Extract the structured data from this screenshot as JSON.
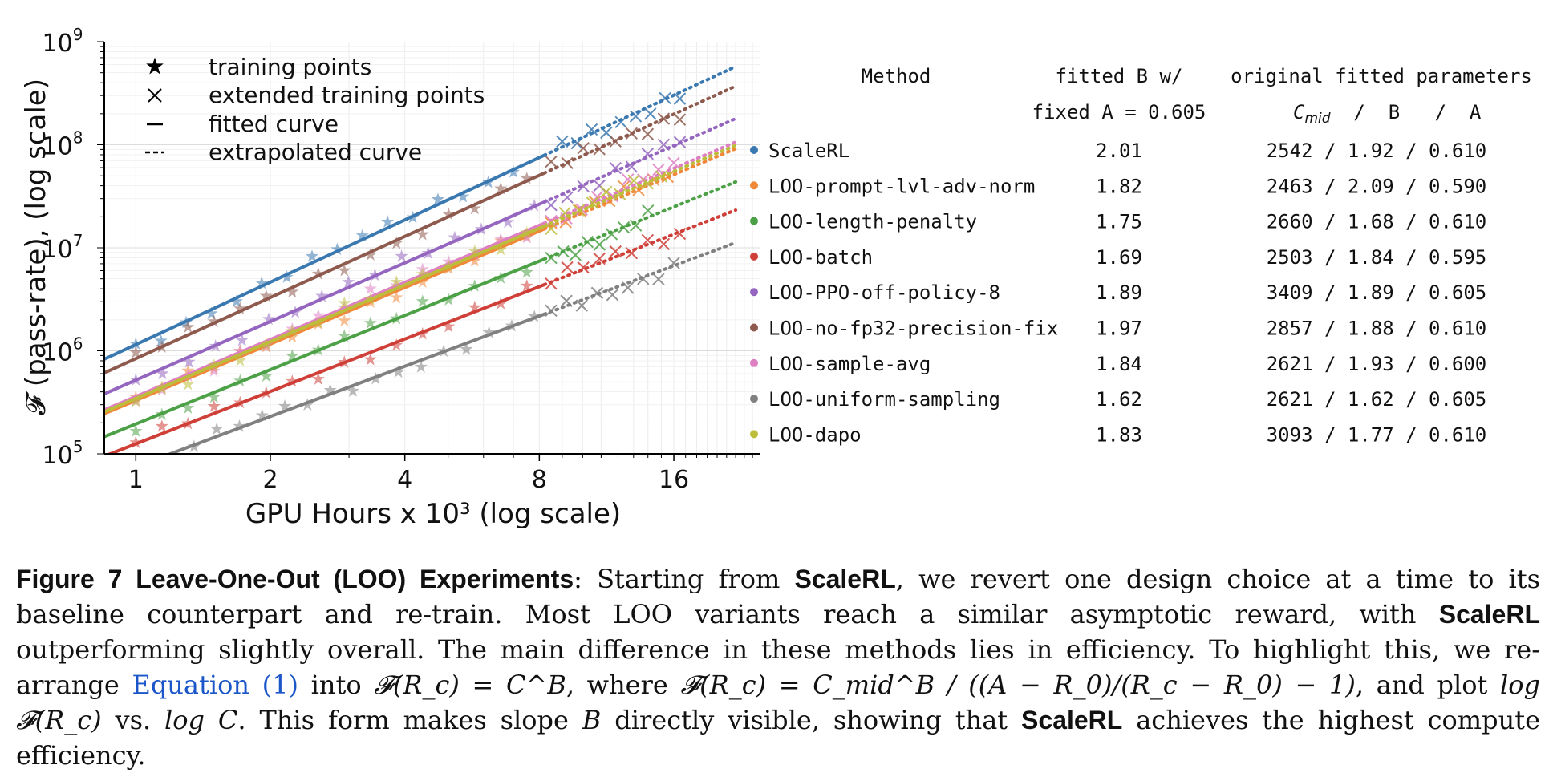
{
  "chart_data": {
    "type": "scatter",
    "ylabel": "𝓕 (pass-rate), (log scale)",
    "xlabel": "GPU Hours x 10³ (log scale)",
    "xscale": "log",
    "yscale": "log",
    "xlim": [
      0.85,
      25
    ],
    "ylim": [
      100000,
      1000000000
    ],
    "x_ticks": [
      1,
      2,
      4,
      8,
      16
    ],
    "x_tick_labels": [
      "1",
      "2",
      "4",
      "8",
      "16"
    ],
    "y_tick_labels": [
      {
        "base": "10",
        "exp": "5"
      },
      {
        "base": "10",
        "exp": "6"
      },
      {
        "base": "10",
        "exp": "7"
      },
      {
        "base": "10",
        "exp": "8"
      },
      {
        "base": "10",
        "exp": "9"
      }
    ],
    "grid": true,
    "legend_position": "top-left",
    "legend": [
      {
        "marker": "★",
        "label": "training points"
      },
      {
        "marker": "×",
        "label": "extended training points"
      },
      {
        "marker": "—",
        "label": "fitted curve"
      },
      {
        "marker": "--",
        "label": "extrapolated curve"
      }
    ],
    "fit_end_x": 8.2,
    "extrap_end_x": 22,
    "series": [
      {
        "name": "ScaleRL",
        "color": "#3a78b0",
        "B": 2.01,
        "y_at_x1": 1150000,
        "train_start": 1.0,
        "train_end": 7.0,
        "ext_start": 9.0,
        "ext_end": 16.5
      },
      {
        "name": "LOO-prompt-lvl-adv-norm",
        "color": "#f0883a",
        "B": 1.82,
        "y_at_x1": 330000,
        "train_start": 1.0,
        "train_end": 7.5,
        "ext_start": 8.5,
        "ext_end": 15.5
      },
      {
        "name": "LOO-length-penalty",
        "color": "#4ca146",
        "B": 1.75,
        "y_at_x1": 195000,
        "train_start": 1.0,
        "train_end": 7.5,
        "ext_start": 8.5,
        "ext_end": 14.0
      },
      {
        "name": "LOO-batch",
        "color": "#cf3e37",
        "B": 1.69,
        "y_at_x1": 125000,
        "train_start": 1.0,
        "train_end": 7.5,
        "ext_start": 8.5,
        "ext_end": 16.5
      },
      {
        "name": "LOO-PPO-off-policy-8",
        "color": "#9466c0",
        "B": 1.89,
        "y_at_x1": 520000,
        "train_start": 1.0,
        "train_end": 7.8,
        "ext_start": 8.5,
        "ext_end": 16.5
      },
      {
        "name": "LOO-no-fp32-precision-fix",
        "color": "#8e5a4e",
        "B": 1.97,
        "y_at_x1": 840000,
        "train_start": 1.0,
        "train_end": 7.5,
        "ext_start": 8.5,
        "ext_end": 16.5
      },
      {
        "name": "LOO-sample-avg",
        "color": "#df7fc3",
        "B": 1.84,
        "y_at_x1": 360000,
        "train_start": 1.0,
        "train_end": 7.5,
        "ext_start": 8.5,
        "ext_end": 16.0
      },
      {
        "name": "LOO-uniform-sampling",
        "color": "#808080",
        "B": 1.62,
        "y_at_x1": 75000,
        "train_start": 1.35,
        "train_end": 7.8,
        "ext_start": 8.5,
        "ext_end": 16.0
      },
      {
        "name": "LOO-dapo",
        "color": "#bcbd3a",
        "B": 1.83,
        "y_at_x1": 345000,
        "train_start": 1.0,
        "train_end": 7.5,
        "ext_start": 8.5,
        "ext_end": 15.0
      }
    ]
  },
  "table": {
    "col_method": "Method",
    "col_fitted_line1": "fitted B w/",
    "col_fitted_line2": "fixed A = 0.605",
    "col_original_line1": "original fitted parameters",
    "col_original_cmid": "C",
    "col_original_cmid_sub": "mid",
    "col_original_rest": "  /  B   /  A",
    "rows": [
      {
        "name": "ScaleRL",
        "fitted_b": "2.01",
        "original": "2542 / 1.92 / 0.610",
        "color": "#3a78b0"
      },
      {
        "name": "LOO-prompt-lvl-adv-norm",
        "fitted_b": "1.82",
        "original": "2463 / 2.09 / 0.590",
        "color": "#f0883a"
      },
      {
        "name": "LOO-length-penalty",
        "fitted_b": "1.75",
        "original": "2660 / 1.68 / 0.610",
        "color": "#4ca146"
      },
      {
        "name": "LOO-batch",
        "fitted_b": "1.69",
        "original": "2503 / 1.84 / 0.595",
        "color": "#cf3e37"
      },
      {
        "name": "LOO-PPO-off-policy-8",
        "fitted_b": "1.89",
        "original": "3409 / 1.89 / 0.605",
        "color": "#9466c0"
      },
      {
        "name": "LOO-no-fp32-precision-fix",
        "fitted_b": "1.97",
        "original": "2857 / 1.88 / 0.610",
        "color": "#8e5a4e"
      },
      {
        "name": "LOO-sample-avg",
        "fitted_b": "1.84",
        "original": "2621 / 1.93 / 0.600",
        "color": "#df7fc3"
      },
      {
        "name": "LOO-uniform-sampling",
        "fitted_b": "1.62",
        "original": "2621 / 1.62 / 0.605",
        "color": "#808080"
      },
      {
        "name": "LOO-dapo",
        "fitted_b": "1.83",
        "original": "3093 / 1.77 / 0.610",
        "color": "#bcbd3a"
      }
    ]
  },
  "caption": {
    "label": "Figure 7  Leave-One-Out (LOO) Experiments",
    "p1": ": Starting from ",
    "b1": "ScaleRL",
    "p2": ", we revert one design choice at a time to its baseline counterpart and re-train. Most LOO variants reach a similar asymptotic reward, with ",
    "b2": "ScaleRL",
    "p3": " outperforming slightly overall. The main difference in these methods lies in efficiency. To highlight this, we re-arrange ",
    "ref": "Equation (1)",
    "p4": " into ",
    "m1": "𝓕(R_c) = C^B",
    "p5": ", where ",
    "m2": "𝓕(R_c) = C_mid^B / ((A − R_0)/(R_c − R_0) − 1)",
    "p6": ", and plot ",
    "m3": "log 𝓕(R_c)",
    "p7": " vs. ",
    "m4": "log C",
    "p8": ". This form makes slope ",
    "m5": "B",
    "p9": " directly visible, showing that ",
    "b3": "ScaleRL",
    "p10": " achieves the highest compute efficiency."
  }
}
